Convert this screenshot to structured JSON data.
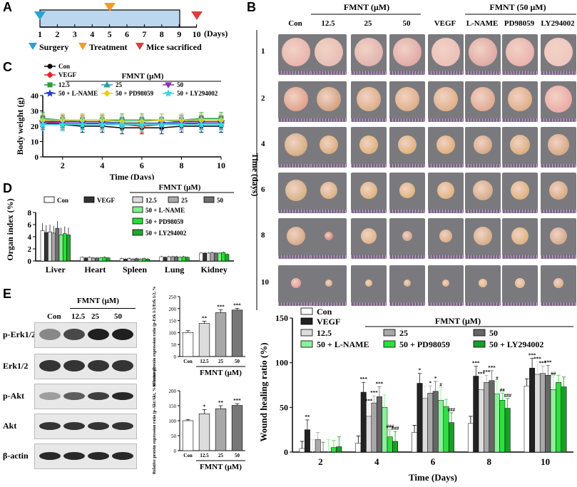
{
  "panel_labels": {
    "a": "A",
    "b": "B",
    "c": "C",
    "d": "D",
    "e": "E"
  },
  "panel_a": {
    "days": [
      "1",
      "2",
      "3",
      "4",
      "5",
      "6",
      "7",
      "8",
      "9",
      "10"
    ],
    "days_unit": "(Days)",
    "legend": {
      "surgery": "Surgery",
      "treatment": "Treatment",
      "sacrificed": "Mice sacrificed"
    },
    "colors": {
      "surgery": "#29a3d4",
      "treatment": "#f39a2b",
      "sacrificed": "#d6403a",
      "bar": "#bcd6ee"
    }
  },
  "panel_b": {
    "fmnt_header": "FMNT (μM)",
    "fmnt50_header": "FMNT (50 μM)",
    "columns": [
      "Con",
      "12.5",
      "25",
      "50",
      "VEGF",
      "L-NAME",
      "PD98059",
      "LY294002"
    ],
    "rows": [
      "1",
      "2",
      "4",
      "6",
      "8",
      "10"
    ],
    "ylabel": "Time (days)"
  },
  "panel_c": {
    "chart_data": {
      "type": "line",
      "title": "FMNT (μM)",
      "xlabel": "Time (Days)",
      "ylabel": "Body weight (g)",
      "x": [
        1,
        2,
        3,
        4,
        5,
        6,
        7,
        8,
        9,
        10
      ],
      "xticks": [
        "2",
        "4",
        "6",
        "8",
        "10"
      ],
      "yticks": [
        "0",
        "10",
        "20",
        "30",
        "40"
      ],
      "ylim": [
        0,
        40
      ],
      "series": [
        {
          "name": "Con",
          "color": "#000000",
          "marker": "circle",
          "values": [
            22,
            21,
            20,
            20,
            19,
            19,
            19,
            20,
            20,
            20
          ]
        },
        {
          "name": "VEGF",
          "color": "#e3242b",
          "marker": "diamond",
          "values": [
            23,
            22,
            22,
            21,
            21,
            20,
            21,
            21,
            22,
            22
          ]
        },
        {
          "name": "12.5",
          "color": "#2a9d3a",
          "marker": "square",
          "values": [
            25,
            24,
            24,
            24,
            24,
            24,
            24,
            24,
            25,
            25
          ]
        },
        {
          "name": "25",
          "color": "#2c9aa8",
          "marker": "triangle",
          "values": [
            24,
            23,
            24,
            24,
            23,
            23,
            24,
            23,
            24,
            24
          ]
        },
        {
          "name": "50",
          "color": "#8b2fb0",
          "marker": "tridown",
          "values": [
            22,
            22,
            22,
            22,
            21,
            21,
            21,
            22,
            22,
            22
          ]
        },
        {
          "name": "50 + L-NAME",
          "color": "#2a3dc8",
          "marker": "star",
          "values": [
            23,
            23,
            23,
            23,
            22,
            22,
            22,
            23,
            23,
            23
          ]
        },
        {
          "name": "50 + PD98059",
          "color": "#e7d214",
          "marker": "diamond",
          "values": [
            24,
            24,
            24,
            24,
            23,
            23,
            24,
            24,
            24,
            24
          ]
        },
        {
          "name": "50 + LY294002",
          "color": "#37d6e0",
          "marker": "star",
          "values": [
            21,
            21,
            21,
            21,
            21,
            21,
            21,
            21,
            21,
            21
          ]
        }
      ]
    }
  },
  "panel_d": {
    "chart_data": {
      "type": "bar",
      "title": "FMNT (μM)",
      "ylabel": "Organ index (%)",
      "categories": [
        "Liver",
        "Heart",
        "Spleen",
        "Lung",
        "Kidney"
      ],
      "yticks": [
        "0",
        "2",
        "4",
        "6",
        "8"
      ],
      "ylim": [
        0,
        8
      ],
      "series": [
        {
          "name": "Con",
          "color": "#ffffff",
          "values": [
            5.0,
            0.6,
            0.4,
            0.7,
            1.3
          ]
        },
        {
          "name": "VEGF",
          "color": "#333333",
          "values": [
            4.7,
            0.5,
            0.3,
            0.6,
            1.3
          ]
        },
        {
          "name": "12.5",
          "color": "#dcdcdc",
          "values": [
            4.8,
            0.6,
            0.4,
            0.7,
            1.3
          ]
        },
        {
          "name": "25",
          "color": "#a8a8a8",
          "values": [
            4.6,
            0.5,
            0.3,
            0.7,
            1.4
          ]
        },
        {
          "name": "50",
          "color": "#6e6e6e",
          "values": [
            5.4,
            0.5,
            0.4,
            0.7,
            1.3
          ]
        },
        {
          "name": "50 + L-NAME",
          "color": "#7ef08a",
          "values": [
            4.3,
            0.5,
            0.3,
            0.6,
            1.3
          ]
        },
        {
          "name": "50 + PD98059",
          "color": "#26e035",
          "values": [
            4.5,
            0.6,
            0.4,
            0.7,
            1.4
          ]
        },
        {
          "name": "50 + LY294002",
          "color": "#1fa82b",
          "values": [
            4.3,
            0.5,
            0.3,
            0.6,
            1.1
          ]
        }
      ]
    }
  },
  "panel_e": {
    "blot_headers": [
      "Con",
      "12.5",
      "25",
      "50"
    ],
    "fmnt_label": "FMNT (μM)",
    "blot_rows": [
      "p-Erk1/2",
      "Erk1/2",
      "p-Akt",
      "Akt",
      "β-actin"
    ],
    "chart_data": [
      {
        "type": "bar",
        "ylabel": "Relative protein expression ratio (p-Erk 1/2/Erk 1/2, % of control)",
        "categories": [
          "Con",
          "12.5",
          "25",
          "50"
        ],
        "values": [
          100,
          138,
          183,
          194
        ],
        "errors": [
          8,
          9,
          12,
          7
        ],
        "significance": [
          "",
          "**",
          "***",
          "***"
        ],
        "colors": [
          "#ffffff",
          "#dcdcdc",
          "#a8a8a8",
          "#777777"
        ],
        "yticks": [
          "0",
          "50",
          "100",
          "150",
          "200",
          "250"
        ],
        "ylim": [
          0,
          250
        ],
        "xlabel": "FMNT (μM)"
      },
      {
        "type": "bar",
        "ylabel": "Relative protein expression ratio (p-Akt/Akt, % of control)",
        "categories": [
          "Con",
          "12.5",
          "25",
          "50"
        ],
        "values": [
          100,
          123,
          140,
          151
        ],
        "errors": [
          4,
          14,
          10,
          6
        ],
        "significance": [
          "",
          "*",
          "**",
          "***"
        ],
        "colors": [
          "#ffffff",
          "#dcdcdc",
          "#a8a8a8",
          "#777777"
        ],
        "yticks": [
          "0",
          "50",
          "100",
          "150",
          "200"
        ],
        "ylim": [
          0,
          200
        ],
        "xlabel": "FMNT (μM)"
      }
    ]
  },
  "panel_f": {
    "chart_data": {
      "type": "bar",
      "title": "FMNT (μM)",
      "xlabel": "Time (Days)",
      "ylabel": "Wound healing ratio (%)",
      "categories": [
        "2",
        "4",
        "6",
        "8",
        "10"
      ],
      "yticks": [
        "0",
        "50",
        "100",
        "150"
      ],
      "ylim": [
        0,
        150
      ],
      "series": [
        {
          "name": "Con",
          "color": "#ffffff",
          "values": [
            4,
            10,
            22,
            32,
            74
          ],
          "sig": [
            "",
            "",
            "",
            "",
            ""
          ]
        },
        {
          "name": "VEGF",
          "color": "#222222",
          "values": [
            25,
            67,
            77,
            85,
            94
          ],
          "sig": [
            "**",
            "***",
            "*",
            "***",
            "***"
          ]
        },
        {
          "name": "12.5",
          "color": "#dcdcdc",
          "values": [
            0,
            40,
            60,
            70,
            87
          ],
          "sig": [
            "",
            "***",
            "",
            "***",
            "***"
          ]
        },
        {
          "name": "25",
          "color": "#a8a8a8",
          "values": [
            14,
            55,
            66,
            78,
            88
          ],
          "sig": [
            "",
            "***",
            "*",
            "***",
            "***"
          ]
        },
        {
          "name": "50",
          "color": "#666666",
          "values": [
            0,
            62,
            68,
            80,
            86
          ],
          "sig": [
            "",
            "***",
            "*",
            "***",
            "***"
          ]
        },
        {
          "name": "50 + L-NAME",
          "color": "#8af296",
          "values": [
            0,
            50,
            58,
            65,
            70
          ],
          "sig": [
            "",
            "",
            "#",
            "#",
            "##"
          ]
        },
        {
          "name": "50 + PD98059",
          "color": "#2ee03d",
          "values": [
            5,
            17,
            51,
            58,
            78
          ],
          "sig": [
            "",
            "###",
            "",
            "##",
            ""
          ]
        },
        {
          "name": "50 + LY294002",
          "color": "#1a9e28",
          "values": [
            6,
            12,
            33,
            49,
            73
          ],
          "sig": [
            "",
            "###",
            "###",
            "###",
            ""
          ]
        }
      ]
    }
  }
}
